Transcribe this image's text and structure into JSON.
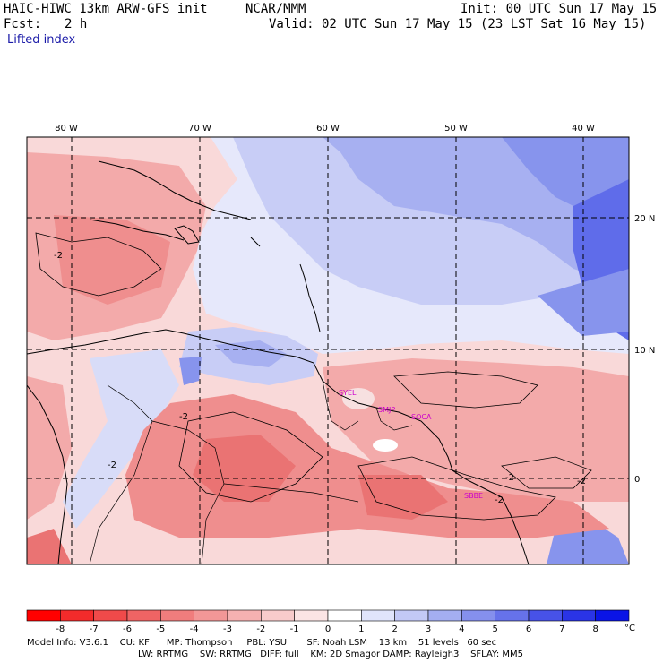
{
  "header": {
    "model": "HAIC-HIWC 13km ARW-GFS init",
    "org": "NCAR/MMM",
    "init": "Init: 00 UTC Sun 17 May 15",
    "fcst_label": "Fcst:",
    "fcst_value": "2 h",
    "valid": "Valid: 02 UTC Sun 17 May 15 (23 LST Sat 16 May 15)",
    "field": "Lifted index"
  },
  "map": {
    "lon_labels": [
      "80 W",
      "70 W",
      "60 W",
      "50 W",
      "40 W"
    ],
    "lat_labels": [
      "20 N",
      "10 N",
      "0"
    ],
    "stations": [
      "SYEL",
      "SMJP",
      "SOCA",
      "SBBE"
    ],
    "contour_labels": [
      "-2",
      "-2",
      "-2",
      "-2",
      "-2",
      "-2"
    ]
  },
  "colorbar": {
    "labels": [
      "-8",
      "-7",
      "-6",
      "-5",
      "-4",
      "-3",
      "-2",
      "-1",
      "0",
      "1",
      "2",
      "3",
      "4",
      "5",
      "6",
      "7",
      "8"
    ],
    "unit": "°C",
    "colors": [
      "#ff0000",
      "#f32b2b",
      "#f04a4a",
      "#ef6464",
      "#f07d7d",
      "#f29797",
      "#f5b1b1",
      "#f8cbcb",
      "#fbe4e4",
      "#ffffff",
      "#e0e4fb",
      "#c3c9f6",
      "#a4aef1",
      "#8590ed",
      "#6672ea",
      "#4752e8",
      "#2a34e6",
      "#0a14e6"
    ]
  },
  "footer": {
    "line1": "Model Info: V3.6.1    CU: KF      MP: Thompson     PBL: YSU       SF: Noah LSM    13 km    51 levels   60 sec",
    "line2": "LW: RRTMG    SW: RRTMG   DIFF: full    KM: 2D Smagor DAMP: Rayleigh3    SFLAY: MM5"
  }
}
